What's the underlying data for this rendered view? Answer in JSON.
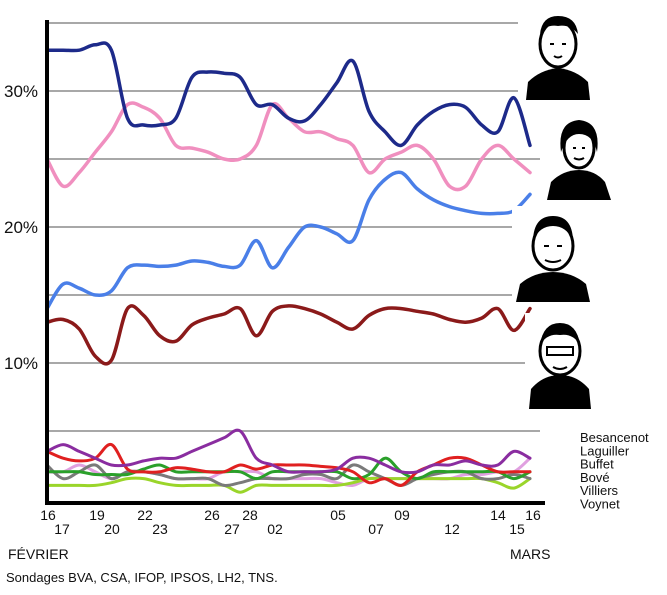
{
  "chart_data": {
    "type": "line",
    "x_tick_labels": [
      "16",
      "17",
      "19",
      "20",
      "22",
      "23",
      "26",
      "27",
      "28",
      "02",
      "05",
      "07",
      "09",
      "12",
      "14",
      "15",
      "16"
    ],
    "month_labels": [
      "FÉVRIER",
      "MARS"
    ],
    "y_tick_labels": [
      "10%",
      "20%",
      "30%"
    ],
    "y_ticks": [
      10,
      20,
      30
    ],
    "gridlines": [
      5,
      10,
      15,
      20,
      25,
      30,
      35
    ],
    "ylim": [
      0,
      35
    ],
    "grid": true,
    "legend_position": "right",
    "source": "Sondages BVA, CSA, IFOP, IPSOS, LH2, TNS.",
    "colors": {
      "sarkozy": "#1d2a8a",
      "royal": "#f08fbf",
      "bayrou": "#4a7fe8",
      "lepen": "#8b1a1a",
      "besancenot": "#8a2da0",
      "laguiller": "#e02020",
      "buffet": "#2aa02a",
      "bove": "#7a7a7a",
      "villiers": "#9ad52a",
      "voynet": "#e0a0e0"
    },
    "series": [
      {
        "key": "sarkozy",
        "values": [
          [
            0,
            33
          ],
          [
            1,
            33
          ],
          [
            2,
            33
          ],
          [
            3,
            33.4
          ],
          [
            4,
            33
          ],
          [
            5,
            28
          ],
          [
            6,
            27.5
          ],
          [
            7,
            27.5
          ],
          [
            8,
            28
          ],
          [
            9,
            31
          ],
          [
            10,
            31.4
          ],
          [
            11,
            31.3
          ],
          [
            12,
            31
          ],
          [
            13,
            29
          ],
          [
            14,
            29
          ],
          [
            15,
            28
          ],
          [
            16,
            27.8
          ],
          [
            17,
            29
          ],
          [
            18,
            30.6
          ],
          [
            19,
            32.2
          ],
          [
            20,
            28.5
          ],
          [
            21,
            27
          ],
          [
            22,
            26
          ],
          [
            23,
            27.5
          ],
          [
            24,
            28.5
          ],
          [
            25,
            29
          ],
          [
            26,
            28.8
          ],
          [
            27,
            27.5
          ],
          [
            28,
            27
          ],
          [
            29,
            29.5
          ],
          [
            30,
            26
          ]
        ]
      },
      {
        "key": "royal",
        "values": [
          [
            0,
            25
          ],
          [
            1,
            23
          ],
          [
            2,
            24
          ],
          [
            3,
            25.5
          ],
          [
            4,
            27
          ],
          [
            5,
            29
          ],
          [
            6,
            28.8
          ],
          [
            7,
            28
          ],
          [
            8,
            26
          ],
          [
            9,
            25.8
          ],
          [
            10,
            25.5
          ],
          [
            11,
            25
          ],
          [
            12,
            25
          ],
          [
            13,
            26
          ],
          [
            14,
            29
          ],
          [
            15,
            28
          ],
          [
            16,
            27
          ],
          [
            17,
            27
          ],
          [
            18,
            26.5
          ],
          [
            19,
            26
          ],
          [
            20,
            24
          ],
          [
            21,
            25
          ],
          [
            22,
            25.5
          ],
          [
            23,
            26
          ],
          [
            24,
            25
          ],
          [
            25,
            23
          ],
          [
            26,
            23
          ],
          [
            27,
            25
          ],
          [
            28,
            26
          ],
          [
            29,
            25
          ],
          [
            30,
            24
          ]
        ]
      },
      {
        "key": "bayrou",
        "values": [
          [
            0,
            14
          ],
          [
            1,
            15.8
          ],
          [
            2,
            15.5
          ],
          [
            3,
            15
          ],
          [
            4,
            15.3
          ],
          [
            5,
            17
          ],
          [
            6,
            17.2
          ],
          [
            7,
            17.1
          ],
          [
            8,
            17.2
          ],
          [
            9,
            17.5
          ],
          [
            10,
            17.4
          ],
          [
            11,
            17.1
          ],
          [
            12,
            17.2
          ],
          [
            13,
            19
          ],
          [
            14,
            17
          ],
          [
            15,
            18.5
          ],
          [
            16,
            20
          ],
          [
            17,
            20
          ],
          [
            18,
            19.5
          ],
          [
            19,
            19
          ],
          [
            20,
            22
          ],
          [
            21,
            23.5
          ],
          [
            22,
            24
          ],
          [
            23,
            22.8
          ],
          [
            24,
            22
          ],
          [
            25,
            21.5
          ],
          [
            26,
            21.2
          ],
          [
            27,
            21
          ],
          [
            28,
            21
          ],
          [
            29,
            21.2
          ],
          [
            30,
            22.4
          ]
        ]
      },
      {
        "key": "lepen",
        "values": [
          [
            0,
            13
          ],
          [
            1,
            13.2
          ],
          [
            2,
            12.5
          ],
          [
            3,
            10.5
          ],
          [
            4,
            10.2
          ],
          [
            5,
            14
          ],
          [
            6,
            13.5
          ],
          [
            7,
            12
          ],
          [
            8,
            11.6
          ],
          [
            9,
            12.8
          ],
          [
            10,
            13.3
          ],
          [
            11,
            13.6
          ],
          [
            12,
            14
          ],
          [
            13,
            12
          ],
          [
            14,
            13.8
          ],
          [
            15,
            14.2
          ],
          [
            16,
            14
          ],
          [
            17,
            13.6
          ],
          [
            18,
            13
          ],
          [
            19,
            12.5
          ],
          [
            20,
            13.5
          ],
          [
            21,
            14
          ],
          [
            22,
            14
          ],
          [
            23,
            13.8
          ],
          [
            24,
            13.6
          ],
          [
            25,
            13.2
          ],
          [
            26,
            13
          ],
          [
            27,
            13.3
          ],
          [
            28,
            14
          ],
          [
            29,
            12.4
          ],
          [
            30,
            14
          ]
        ]
      },
      {
        "key": "besancenot",
        "values": [
          [
            0,
            3.5
          ],
          [
            1,
            4
          ],
          [
            2,
            3.5
          ],
          [
            3,
            3
          ],
          [
            4,
            2.5
          ],
          [
            5,
            2.5
          ],
          [
            6,
            2.8
          ],
          [
            7,
            3
          ],
          [
            8,
            3
          ],
          [
            9,
            3.5
          ],
          [
            10,
            4
          ],
          [
            11,
            4.5
          ],
          [
            12,
            5
          ],
          [
            13,
            3
          ],
          [
            14,
            2.5
          ],
          [
            15,
            2
          ],
          [
            16,
            2
          ],
          [
            17,
            2
          ],
          [
            18,
            2.2
          ],
          [
            19,
            3
          ],
          [
            20,
            3
          ],
          [
            21,
            2.5
          ],
          [
            22,
            2
          ],
          [
            23,
            2
          ],
          [
            24,
            2.5
          ],
          [
            25,
            2.5
          ],
          [
            26,
            2.8
          ],
          [
            27,
            2.5
          ],
          [
            28,
            2.5
          ],
          [
            29,
            3.5
          ],
          [
            30,
            3
          ]
        ]
      },
      {
        "key": "laguiller",
        "values": [
          [
            0,
            3.5
          ],
          [
            1,
            3
          ],
          [
            2,
            2.8
          ],
          [
            3,
            3
          ],
          [
            4,
            4
          ],
          [
            5,
            2.2
          ],
          [
            6,
            2
          ],
          [
            7,
            2
          ],
          [
            8,
            2.3
          ],
          [
            9,
            2.2
          ],
          [
            10,
            2
          ],
          [
            11,
            2
          ],
          [
            12,
            2.5
          ],
          [
            13,
            2.2
          ],
          [
            14,
            2.5
          ],
          [
            15,
            2.5
          ],
          [
            16,
            2.5
          ],
          [
            17,
            2.4
          ],
          [
            18,
            2.3
          ],
          [
            19,
            2
          ],
          [
            20,
            1.2
          ],
          [
            21,
            1.5
          ],
          [
            22,
            1
          ],
          [
            23,
            2
          ],
          [
            24,
            2.5
          ],
          [
            25,
            3
          ],
          [
            26,
            3
          ],
          [
            27,
            2.5
          ],
          [
            28,
            2
          ],
          [
            29,
            2
          ],
          [
            30,
            2
          ]
        ]
      },
      {
        "key": "buffet",
        "values": [
          [
            0,
            2
          ],
          [
            1,
            2
          ],
          [
            2,
            2
          ],
          [
            3,
            1.8
          ],
          [
            4,
            1.8
          ],
          [
            5,
            1.8
          ],
          [
            6,
            2.2
          ],
          [
            7,
            2.5
          ],
          [
            8,
            2
          ],
          [
            9,
            2
          ],
          [
            10,
            2
          ],
          [
            11,
            2
          ],
          [
            12,
            2
          ],
          [
            13,
            1.5
          ],
          [
            14,
            2
          ],
          [
            15,
            2
          ],
          [
            16,
            2
          ],
          [
            17,
            2
          ],
          [
            18,
            2
          ],
          [
            19,
            1.5
          ],
          [
            20,
            1.8
          ],
          [
            21,
            3
          ],
          [
            22,
            2
          ],
          [
            23,
            1.5
          ],
          [
            24,
            2
          ],
          [
            25,
            2
          ],
          [
            26,
            2
          ],
          [
            27,
            2
          ],
          [
            28,
            2
          ],
          [
            29,
            1.5
          ],
          [
            30,
            2
          ]
        ]
      },
      {
        "key": "bove",
        "values": [
          [
            0,
            2.5
          ],
          [
            1,
            1.5
          ],
          [
            2,
            2
          ],
          [
            3,
            2.5
          ],
          [
            4,
            1.5
          ],
          [
            5,
            2
          ],
          [
            6,
            2
          ],
          [
            7,
            1.8
          ],
          [
            8,
            1.5
          ],
          [
            9,
            1.5
          ],
          [
            10,
            1.5
          ],
          [
            11,
            1
          ],
          [
            12,
            1.2
          ],
          [
            13,
            1.5
          ],
          [
            14,
            1.5
          ],
          [
            15,
            1.5
          ],
          [
            16,
            1.8
          ],
          [
            17,
            1.8
          ],
          [
            18,
            1.5
          ],
          [
            19,
            2.5
          ],
          [
            20,
            2
          ],
          [
            21,
            1.5
          ],
          [
            22,
            1
          ],
          [
            23,
            1.5
          ],
          [
            24,
            1.8
          ],
          [
            25,
            2
          ],
          [
            26,
            2
          ],
          [
            27,
            1.5
          ],
          [
            28,
            1.5
          ],
          [
            29,
            1.8
          ],
          [
            30,
            1.5
          ]
        ]
      },
      {
        "key": "villiers",
        "values": [
          [
            0,
            1
          ],
          [
            1,
            1
          ],
          [
            2,
            1
          ],
          [
            3,
            1
          ],
          [
            4,
            1.2
          ],
          [
            5,
            1.5
          ],
          [
            6,
            1.5
          ],
          [
            7,
            1.2
          ],
          [
            8,
            1
          ],
          [
            9,
            1
          ],
          [
            10,
            1
          ],
          [
            11,
            1
          ],
          [
            12,
            0.5
          ],
          [
            13,
            1
          ],
          [
            14,
            1
          ],
          [
            15,
            1
          ],
          [
            16,
            1
          ],
          [
            17,
            1
          ],
          [
            18,
            1
          ],
          [
            19,
            1.2
          ],
          [
            20,
            1.5
          ],
          [
            21,
            1.5
          ],
          [
            22,
            1.5
          ],
          [
            23,
            1.5
          ],
          [
            24,
            1.5
          ],
          [
            25,
            1.5
          ],
          [
            26,
            1.5
          ],
          [
            27,
            1.5
          ],
          [
            28,
            1.2
          ],
          [
            29,
            0.8
          ],
          [
            30,
            1.5
          ]
        ]
      },
      {
        "key": "voynet",
        "values": [
          [
            0,
            2
          ],
          [
            1,
            2
          ],
          [
            2,
            2.5
          ],
          [
            3,
            2
          ],
          [
            4,
            1.5
          ],
          [
            5,
            2
          ],
          [
            6,
            2
          ],
          [
            7,
            1.8
          ],
          [
            8,
            1.5
          ],
          [
            9,
            1.5
          ],
          [
            10,
            1.5
          ],
          [
            11,
            2
          ],
          [
            12,
            2
          ],
          [
            13,
            2
          ],
          [
            14,
            1.5
          ],
          [
            15,
            1.5
          ],
          [
            16,
            1.5
          ],
          [
            17,
            1.5
          ],
          [
            18,
            1.2
          ],
          [
            19,
            1
          ],
          [
            20,
            1.5
          ],
          [
            21,
            1.5
          ],
          [
            22,
            1.5
          ],
          [
            23,
            1.5
          ],
          [
            24,
            1.5
          ],
          [
            25,
            1.5
          ],
          [
            26,
            1.8
          ],
          [
            27,
            1.8
          ],
          [
            28,
            2
          ],
          [
            29,
            2
          ],
          [
            30,
            3
          ]
        ]
      }
    ],
    "legend": [
      {
        "label": "Besancenot",
        "key": "besancenot"
      },
      {
        "label": "Laguiller",
        "key": "laguiller"
      },
      {
        "label": "Buffet",
        "key": "buffet"
      },
      {
        "label": "Bové",
        "key": "bove"
      },
      {
        "label": "Villiers",
        "key": "villiers"
      },
      {
        "label": "Voynet",
        "key": "voynet"
      }
    ],
    "portraits": [
      {
        "name": "portrait-sarkozy",
        "icon": "portrait-icon"
      },
      {
        "name": "portrait-royal",
        "icon": "portrait-icon"
      },
      {
        "name": "portrait-bayrou",
        "icon": "portrait-icon"
      },
      {
        "name": "portrait-lepen",
        "icon": "portrait-icon"
      }
    ]
  }
}
